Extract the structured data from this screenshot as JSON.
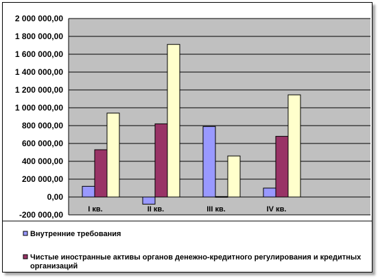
{
  "chart_data": {
    "type": "bar",
    "categories": [
      "I кв.",
      "II кв.",
      "III кв.",
      "IV кв."
    ],
    "series": [
      {
        "name": "Внутренние требования",
        "values": [
          120000,
          -80000,
          790000,
          100000
        ],
        "color": "#9999ff"
      },
      {
        "name": "Чистые иностранные активы органов денежно-кредитного регулирования и кредитных организаций",
        "values": [
          530000,
          820000,
          5000,
          680000
        ],
        "color": "#993366"
      },
      {
        "name": "",
        "values": [
          940000,
          1710000,
          460000,
          1145000
        ],
        "color": "#ffffcc"
      }
    ],
    "y_ticks": [
      "2 000 000,00",
      "1 800 000,00",
      "1 600 000,00",
      "1 400 000,00",
      "1 200 000,00",
      "1 000 000,00",
      "800 000,00",
      "600 000,00",
      "400 000,00",
      "200 000,00",
      "0,00",
      "-200 000,00"
    ],
    "ylim": [
      -200000,
      2000000
    ],
    "plot_background": "#c0c0c0",
    "grid": true,
    "legend_position": "bottom",
    "legend_lines": [
      [
        "Внутренние требования"
      ],
      [
        "Чистые иностранные активы органов денежно-кредитного регулирования и кредитных",
        "организаций"
      ]
    ]
  }
}
